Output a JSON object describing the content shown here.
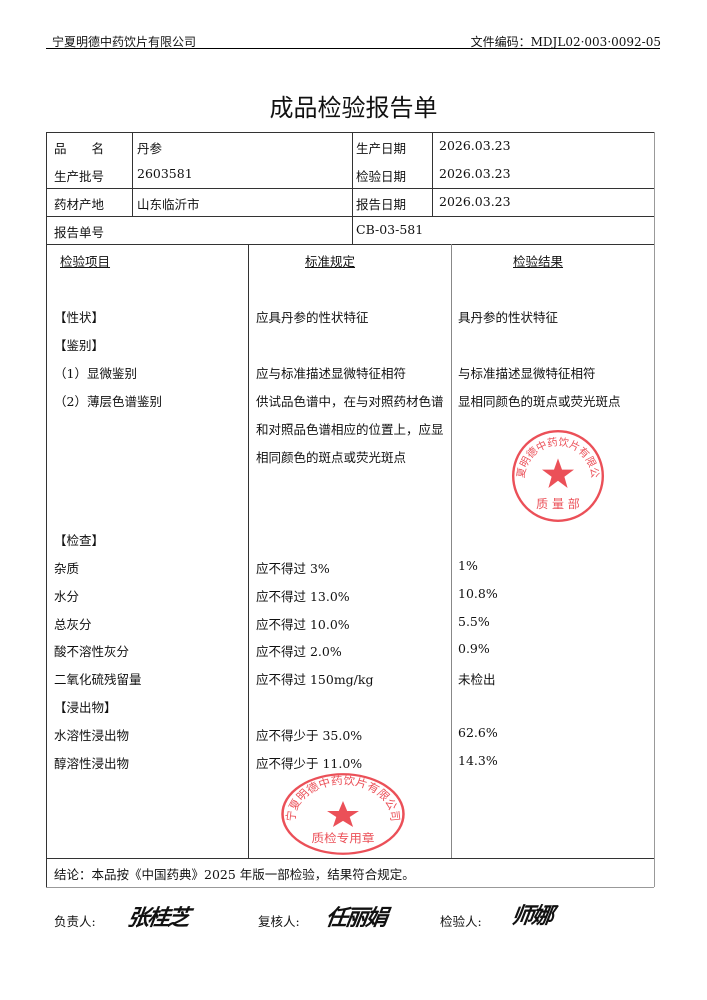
{
  "header": {
    "company": "宁夏明德中药饮片有限公司",
    "doc_code": "文件编码：MDJL02·003·0092-05"
  },
  "title": "成品检验报告单",
  "info": {
    "product_name_label": "品　　名",
    "product_name": "丹参",
    "batch_label": "生产批号",
    "batch": "2603581",
    "origin_label": "药材产地",
    "origin": "山东临沂市",
    "prod_date_label": "生产日期",
    "prod_date": "2026.03.23",
    "test_date_label": "检验日期",
    "test_date": "2026.03.23",
    "report_date_label": "报告日期",
    "report_date": "2026.03.23",
    "report_no_label": "报告单号",
    "report_no": "CB-03-581"
  },
  "columns": [
    "检验项目",
    "标准规定",
    "检验结果"
  ],
  "rows": [
    {
      "item": "【性状】",
      "standard": "应具丹参的性状特征",
      "result": "具丹参的性状特征"
    },
    {
      "item": "【鉴别】",
      "standard": "",
      "result": ""
    },
    {
      "item": "（1）显微鉴别",
      "standard": "应与标准描述显微特征相符",
      "result": "与标准描述显微特征相符"
    },
    {
      "item": "（2）薄层色谱鉴别",
      "standard": "供试品色谱中，在与对照药材色谱",
      "result": "显相同颜色的斑点或荧光斑点"
    },
    {
      "item": "",
      "standard": "和对照品色谱相应的位置上，应显",
      "result": ""
    },
    {
      "item": "",
      "standard": "相同颜色的斑点或荧光斑点",
      "result": ""
    },
    {
      "item": "【检查】",
      "standard": "",
      "result": ""
    },
    {
      "item": "杂质",
      "standard": "应不得过 3%",
      "result": "1%"
    },
    {
      "item": "水分",
      "standard": "应不得过 13.0%",
      "result": "10.8%"
    },
    {
      "item": "总灰分",
      "standard": "应不得过 10.0%",
      "result": "5.5%"
    },
    {
      "item": "酸不溶性灰分",
      "standard": "应不得过 2.0%",
      "result": "0.9%"
    },
    {
      "item": "二氧化硫残留量",
      "standard": "应不得过 150mg/kg",
      "result": "未检出"
    },
    {
      "item": "【浸出物】",
      "standard": "",
      "result": ""
    },
    {
      "item": "水溶性浸出物",
      "standard": "应不得少于 35.0%",
      "result": "62.6%"
    },
    {
      "item": "醇溶性浸出物",
      "standard": "应不得少于 11.0%",
      "result": "14.3%"
    }
  ],
  "conclusion": "结论：本品按《中国药典》2025 年版一部检验，结果符合规定。",
  "signatures": {
    "responsible_label": "负责人:",
    "responsible": "张桂芝",
    "reviewer_label": "复核人:",
    "reviewer": "任丽娟",
    "inspector_label": "检验人:",
    "inspector": "师娜"
  },
  "stamps": {
    "top": {
      "ring_text": "宁夏明德中药饮片有限公司",
      "center_text": "质 量 部"
    },
    "bottom": {
      "ring_text": "宁夏明德中药饮片有限公司",
      "center_text": "质检专用章"
    },
    "color": "#e8323c"
  }
}
